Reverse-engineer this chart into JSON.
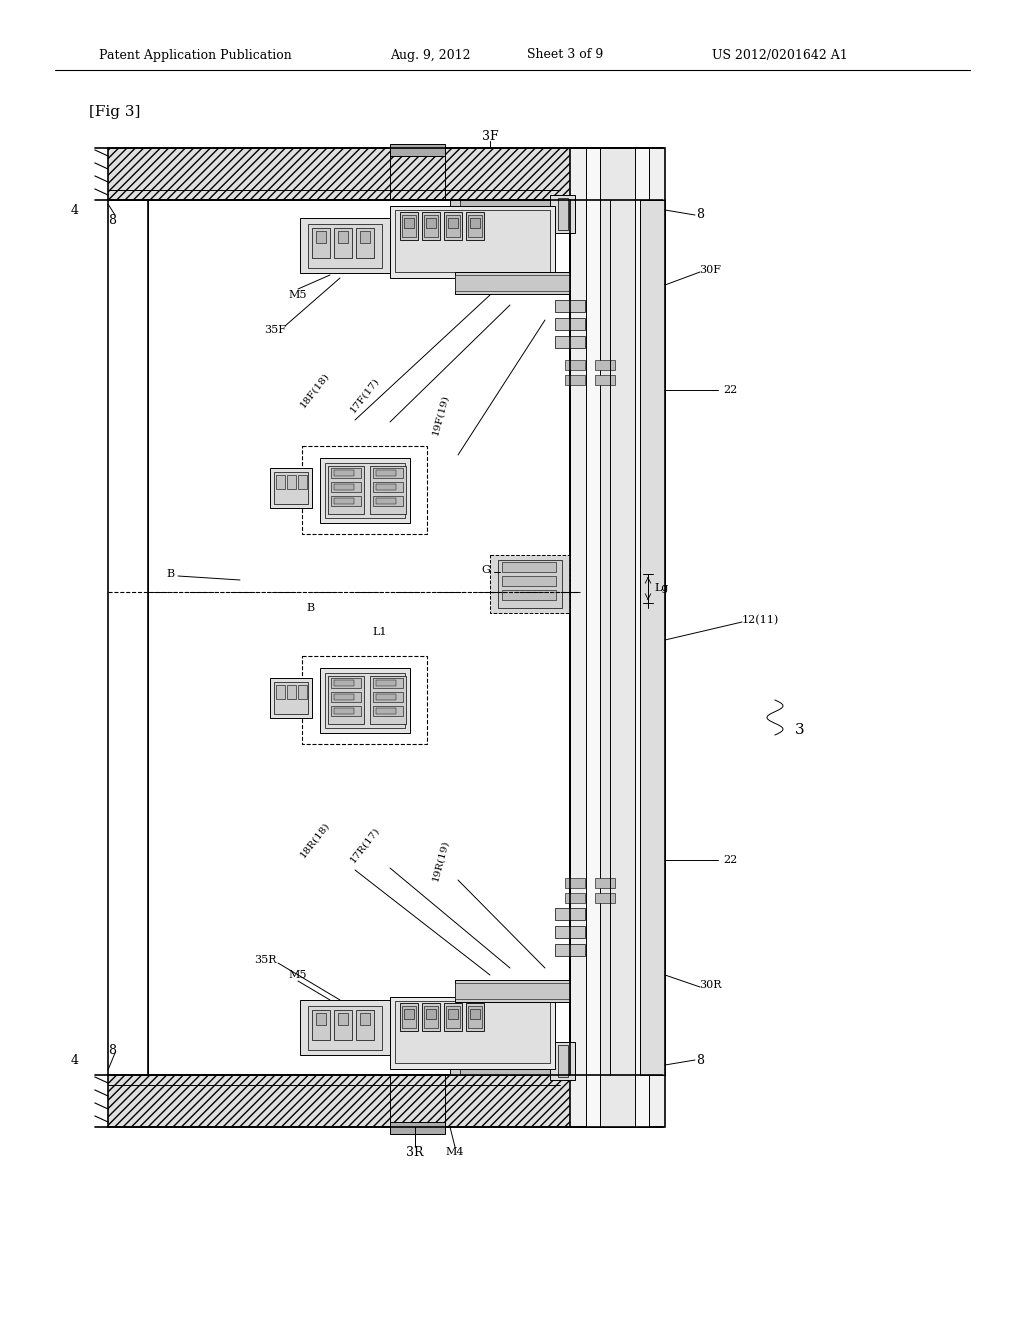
{
  "background_color": "#ffffff",
  "header_text": "Patent Application Publication",
  "header_date": "Aug. 9, 2012",
  "header_sheet": "Sheet 3 of 9",
  "header_patent": "US 2012/0201642 A1",
  "fig_label": "[Fig 3]",
  "page_width": 10.24,
  "page_height": 13.2,
  "line_color": "#000000",
  "diagram_color": "#222222"
}
